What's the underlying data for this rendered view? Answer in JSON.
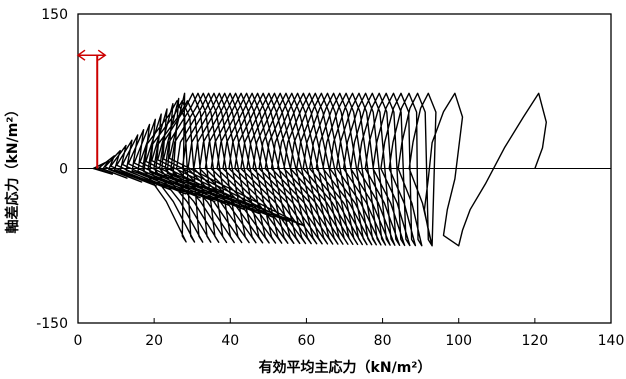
{
  "chart_data": {
    "type": "line",
    "xlabel": "有効平均主応力（kN/m²）",
    "ylabel": "軸差応力（kN/m²）",
    "xlim": [
      0,
      140
    ],
    "ylim": [
      -150,
      150
    ],
    "x_ticks": [
      "0",
      "20",
      "40",
      "60",
      "80",
      "100",
      "120",
      "140"
    ],
    "y_ticks": [
      "150",
      "0",
      "-150"
    ],
    "grid": false,
    "zero_line": true,
    "annotation": {
      "type": "double-arrow",
      "color": "#cc0000",
      "x_range": [
        0,
        4
      ],
      "y": 110,
      "vertical_marker": {
        "x": 4,
        "y_from": 0,
        "y_to": 110
      }
    },
    "cycles": {
      "count": 42,
      "q_max": 73,
      "q_min": -75,
      "start_p": 123,
      "end_p": 4,
      "description_note": "Stress path of cyclic loading: p' decreases each cycle from about 123 to about 4 kN/m²"
    },
    "series": [
      {
        "points": [
          [
            120,
            0
          ],
          [
            122,
            20
          ],
          [
            123,
            45
          ],
          [
            121,
            73
          ],
          [
            117,
            50
          ],
          [
            112,
            20
          ],
          [
            107,
            -15
          ],
          [
            103,
            -40
          ],
          [
            101,
            -60
          ],
          [
            100,
            -75
          ],
          [
            96,
            -65
          ],
          [
            97,
            -40
          ],
          [
            99,
            -10
          ],
          [
            100,
            20
          ],
          [
            101,
            50
          ],
          [
            99,
            73
          ],
          [
            96,
            55
          ],
          [
            93,
            25
          ],
          [
            92,
            -10
          ],
          [
            91,
            -40
          ],
          [
            92,
            -60
          ],
          [
            93,
            -75
          ]
        ]
      }
    ]
  }
}
